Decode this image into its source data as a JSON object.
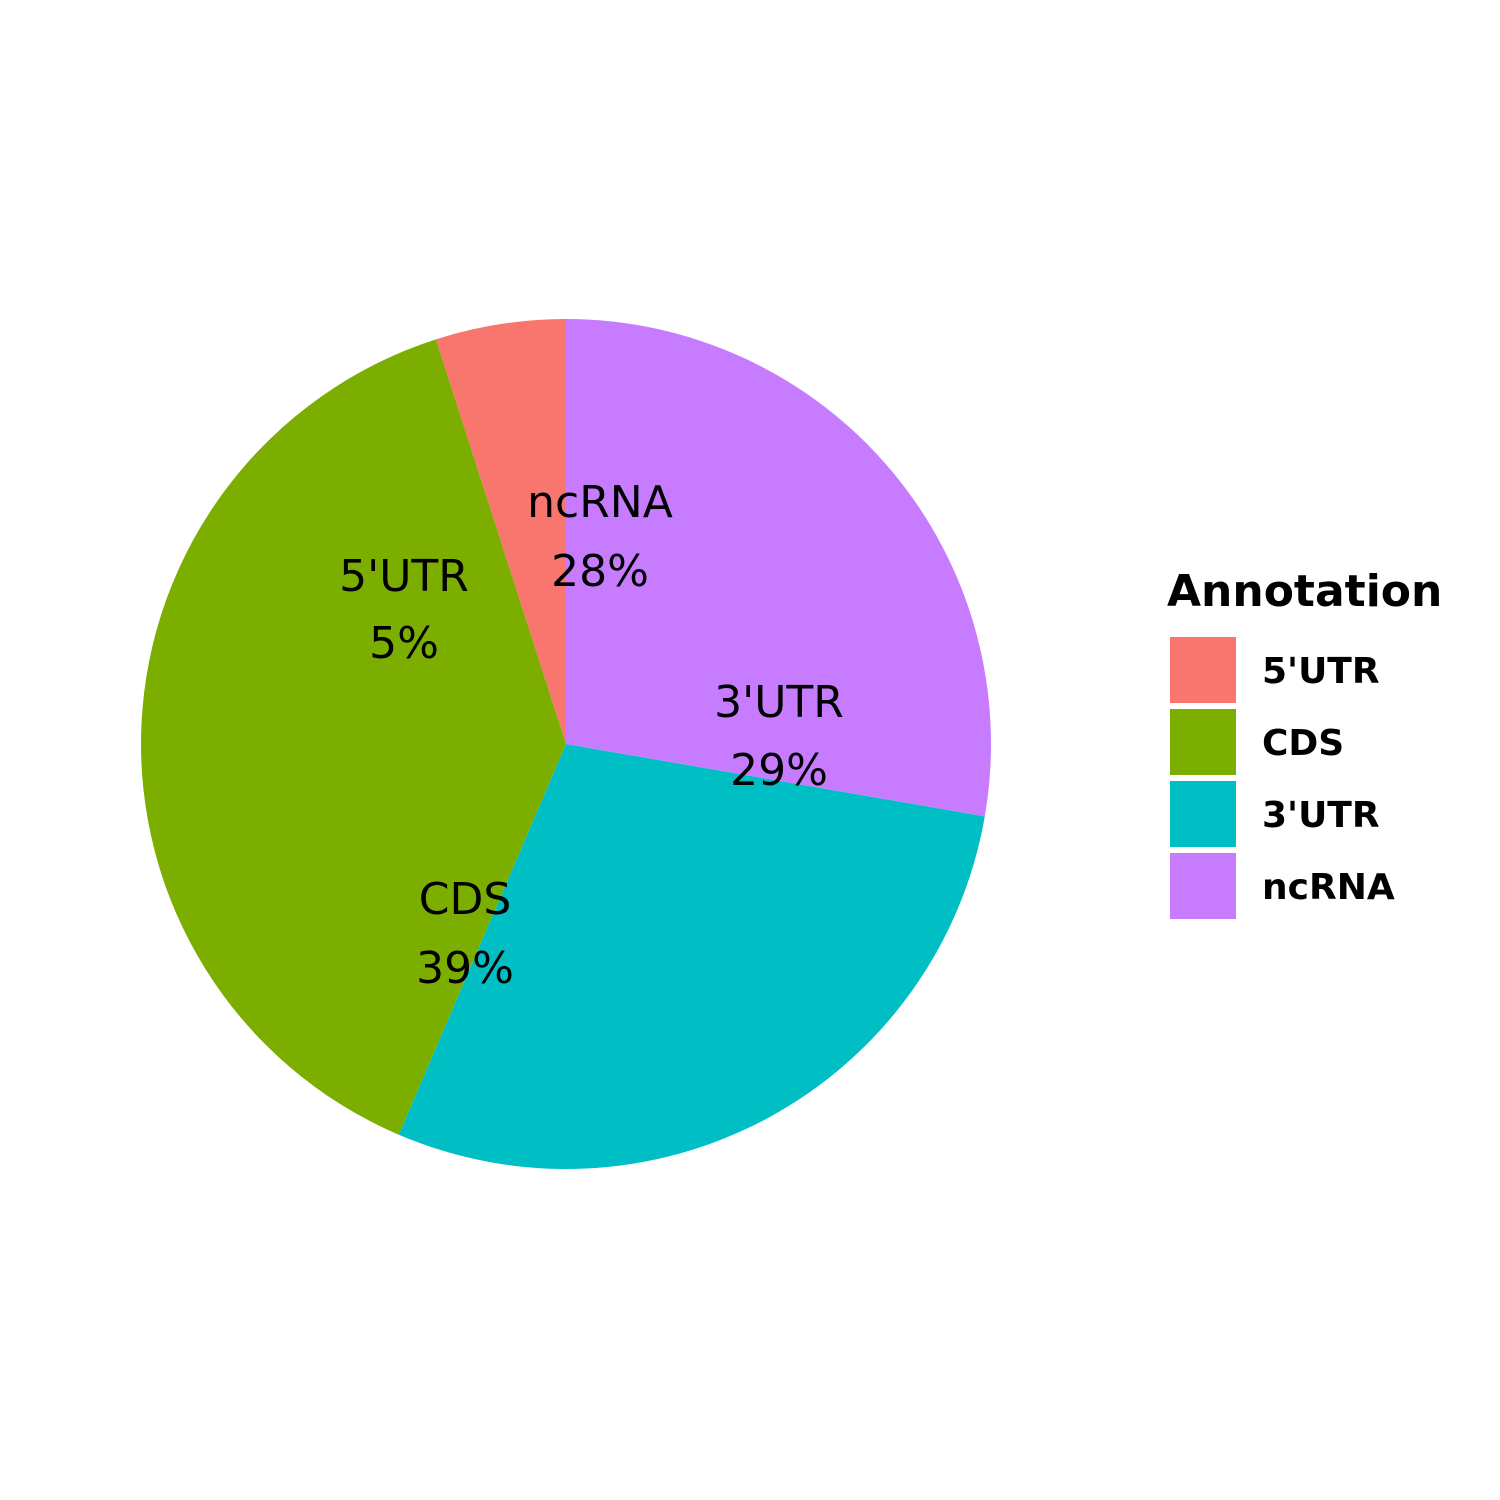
{
  "chart_data": {
    "type": "pie",
    "categories": [
      "5'UTR",
      "CDS",
      "3'UTR",
      "ncRNA"
    ],
    "values": [
      5,
      39,
      29,
      28
    ],
    "value_labels": [
      "5%",
      "39%",
      "29%",
      "28%"
    ],
    "colors": [
      "#F8766D",
      "#7CAE00",
      "#00BFC4",
      "#C77CFF"
    ],
    "slice_labels": [
      {
        "name": "ncRNA",
        "value": "28%"
      },
      {
        "name": "5'UTR",
        "value": "5%"
      },
      {
        "name": "3'UTR",
        "value": "29%"
      },
      {
        "name": "CDS",
        "value": "39%"
      }
    ],
    "direction": "counterclockwise from top",
    "legend": {
      "title": "Annotation",
      "position": "right",
      "entries": [
        "5'UTR",
        "CDS",
        "3'UTR",
        "ncRNA"
      ]
    }
  }
}
